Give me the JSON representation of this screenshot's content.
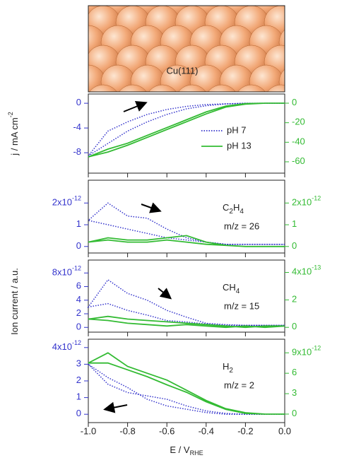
{
  "image_label": "Cu(111)",
  "chart_data": [
    {
      "type": "line",
      "ylabel": "j / mA cm",
      "ylabel_exp": "-2",
      "x": [
        0,
        -0.1,
        -0.2,
        -0.3,
        -0.4,
        -0.5,
        -0.6,
        -0.7,
        -0.8,
        -0.9,
        -1.0,
        -0.9,
        -0.8,
        -0.7,
        -0.6,
        -0.5,
        -0.4,
        -0.3,
        -0.2,
        -0.1,
        0
      ],
      "xlim": [
        -1.0,
        0.0
      ],
      "xticks": [
        -1,
        -0.8,
        -0.6,
        -0.4,
        -0.2,
        0
      ],
      "ylim": [
        -11.3,
        1.5
      ],
      "yticks": [
        0,
        -4,
        -8
      ],
      "y2lim": [
        -71.6,
        9.4
      ],
      "y2ticks": [
        0,
        -20,
        -40,
        -60
      ],
      "legend": "right",
      "series": [
        {
          "name": "pH 7",
          "color": "#3333cc",
          "line_style": "dotted",
          "values": [
            0,
            0,
            0,
            -0.1,
            -0.2,
            -0.5,
            -1.0,
            -1.8,
            -3.0,
            -4.5,
            -8.5,
            -6.5,
            -4.5,
            -3.0,
            -1.8,
            -0.9,
            -0.4,
            -0.1,
            0,
            0,
            0
          ]
        },
        {
          "name": "pH 13",
          "color": "#33bb33",
          "line_style": "solid",
          "axis": "y2",
          "values": [
            0,
            0,
            -0.5,
            -3,
            -9,
            -17,
            -25,
            -33,
            -41,
            -47,
            -55,
            -50,
            -43,
            -35,
            -27,
            -19,
            -11,
            -4,
            -1,
            0,
            0
          ]
        }
      ]
    },
    {
      "type": "line",
      "species": [
        "C",
        "2",
        "H",
        "4"
      ],
      "mz": "m/z = 26",
      "x": [
        0,
        -0.1,
        -0.2,
        -0.3,
        -0.4,
        -0.5,
        -0.6,
        -0.7,
        -0.8,
        -0.9,
        -1.0,
        -0.9,
        -0.8,
        -0.7,
        -0.6,
        -0.5,
        -0.4,
        -0.3,
        -0.2,
        -0.1,
        0
      ],
      "xlim": [
        -1.0,
        0.0
      ],
      "xticks": [
        -1,
        -0.8,
        -0.6,
        -0.4,
        -0.2,
        0
      ],
      "ylim": [
        -0.3,
        3.05
      ],
      "yticks": [
        0,
        1,
        2
      ],
      "yexp_base": "x10",
      "yexp": "-12",
      "y2lim": [
        -0.3,
        3.05
      ],
      "y2ticks": [
        0,
        1,
        2
      ],
      "y2exp_base": "x10",
      "y2exp": "-12",
      "series": [
        {
          "color": "#3333cc",
          "line_style": "dotted",
          "values": [
            0.1,
            0.1,
            0.1,
            0.1,
            0.2,
            0.4,
            0.8,
            1.3,
            1.4,
            2.0,
            1.2,
            1.0,
            0.8,
            0.6,
            0.4,
            0.3,
            0.2,
            0.1,
            0.1,
            0.1,
            0.1
          ]
        },
        {
          "color": "#33bb33",
          "line_style": "solid",
          "axis": "y2",
          "values": [
            0,
            0,
            0,
            0.05,
            0.2,
            0.5,
            0.4,
            0.3,
            0.3,
            0.4,
            0.2,
            0.3,
            0.2,
            0.2,
            0.3,
            0.2,
            0.1,
            0.05,
            0,
            0,
            0
          ]
        }
      ]
    },
    {
      "type": "line",
      "ylabel": "Ion current / a.u.",
      "species": [
        "CH",
        "4"
      ],
      "mz": "m/z = 15",
      "x": [
        0,
        -0.1,
        -0.2,
        -0.3,
        -0.4,
        -0.5,
        -0.6,
        -0.7,
        -0.8,
        -0.9,
        -1.0,
        -0.9,
        -0.8,
        -0.7,
        -0.6,
        -0.5,
        -0.4,
        -0.3,
        -0.2,
        -0.1,
        0
      ],
      "xlim": [
        -1.0,
        0.0
      ],
      "xticks": [
        -1,
        -0.8,
        -0.6,
        -0.4,
        -0.2,
        0
      ],
      "ylim": [
        -0.7,
        9.9
      ],
      "yticks": [
        0,
        2,
        4,
        6,
        8
      ],
      "yexp_base": "x10",
      "yexp": "-12",
      "y2lim": [
        -0.35,
        4.9
      ],
      "y2ticks": [
        0,
        2,
        4
      ],
      "y2exp_base": "x10",
      "y2exp": "-13",
      "series": [
        {
          "color": "#3333cc",
          "line_style": "dotted",
          "values": [
            0.3,
            0.3,
            0.3,
            0.4,
            0.6,
            1.5,
            2.5,
            4.0,
            5.0,
            7.0,
            3.0,
            3.5,
            2.5,
            1.8,
            1.0,
            0.8,
            0.5,
            0.3,
            0.3,
            0.3,
            0.3
          ]
        },
        {
          "color": "#33bb33",
          "line_style": "solid",
          "axis": "y2",
          "values": [
            0.1,
            0.1,
            0,
            0.1,
            0.2,
            0.3,
            0.4,
            0.5,
            0.6,
            0.8,
            0.6,
            0.5,
            0.3,
            0.2,
            0.1,
            0.2,
            0.1,
            0,
            0.1,
            0,
            0.1
          ]
        }
      ]
    },
    {
      "type": "line",
      "species": [
        "H",
        "2"
      ],
      "mz": "m/z = 2",
      "xlabel": "E / V",
      "xlabel_sub": "RHE",
      "x": [
        0,
        -0.1,
        -0.2,
        -0.3,
        -0.4,
        -0.5,
        -0.6,
        -0.7,
        -0.8,
        -0.9,
        -1.0,
        -0.9,
        -0.8,
        -0.7,
        -0.6,
        -0.5,
        -0.4,
        -0.3,
        -0.2,
        -0.1,
        0
      ],
      "xlim": [
        -1.0,
        0.0
      ],
      "xticks": [
        {
          "value": -1,
          "label": "-1.0"
        },
        -0.8,
        -0.6,
        -0.4,
        -0.2,
        {
          "value": 0,
          "label": "0.0"
        }
      ],
      "ylim": [
        -0.5,
        4.5
      ],
      "yticks": [
        0,
        1,
        2,
        3,
        4
      ],
      "yexp_base": "x10",
      "yexp": "-12",
      "y2lim": [
        -1.25,
        11.0
      ],
      "y2ticks": [
        0,
        3,
        6,
        9
      ],
      "y2exp_base": "x10",
      "y2exp": "-12",
      "series": [
        {
          "color": "#3333cc",
          "line_style": "dotted",
          "values": [
            0,
            0,
            0,
            0.05,
            0.2,
            0.5,
            0.9,
            1.1,
            1.3,
            1.8,
            3.0,
            2.2,
            1.6,
            0.9,
            0.5,
            0.3,
            0.1,
            0,
            0,
            0,
            0
          ]
        },
        {
          "color": "#33bb33",
          "line_style": "solid",
          "axis": "y2",
          "values": [
            0,
            0,
            0.2,
            0.8,
            2.0,
            3.5,
            5.0,
            6.0,
            7.0,
            9.0,
            7.5,
            7.5,
            6.5,
            5.5,
            4.3,
            3.2,
            1.8,
            0.7,
            0.1,
            0,
            0
          ]
        }
      ]
    }
  ]
}
